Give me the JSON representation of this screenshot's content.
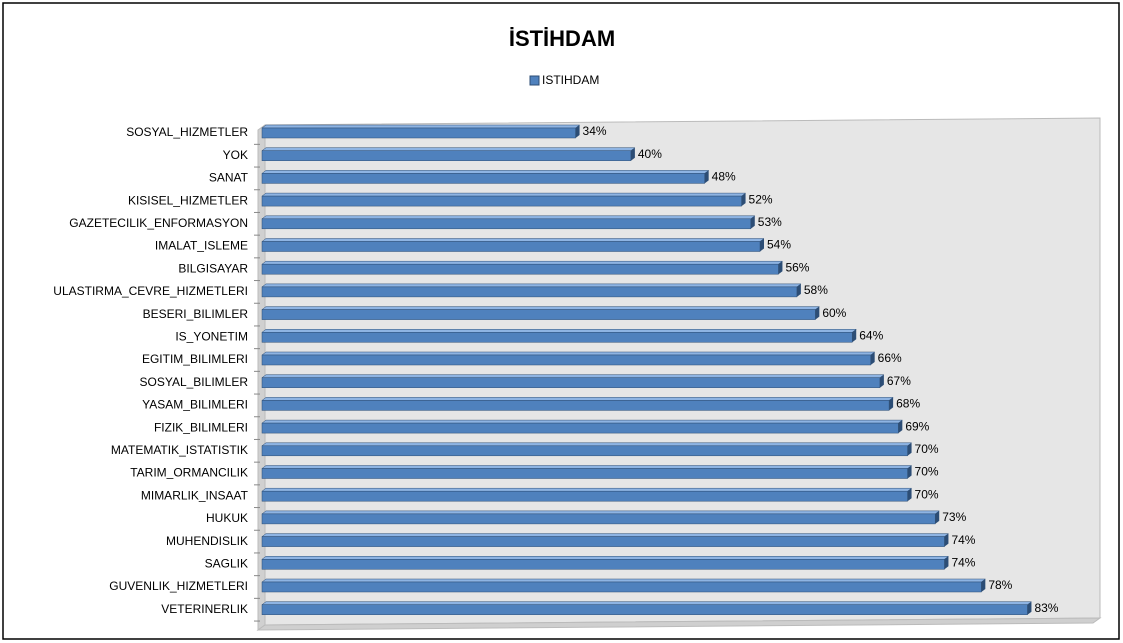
{
  "chart_data": {
    "type": "bar",
    "orientation": "horizontal",
    "title": "İSTİHDAM",
    "categories": [
      "SOSYAL_HIZMETLER",
      "YOK",
      "SANAT",
      "KISISEL_HIZMETLER",
      "GAZETECILIK_ENFORMASYON",
      "IMALAT_ISLEME",
      "BILGISAYAR",
      "ULASTIRMA_CEVRE_HIZMETLERI",
      "BESERI_BILIMLER",
      "IS_YONETIM",
      "EGITIM_BILIMLERI",
      "SOSYAL_BILIMLER",
      "YASAM_BILIMLERI",
      "FIZIK_BILIMLERI",
      "MATEMATIK_ISTATISTIK",
      "TARIM_ORMANCILIK",
      "MIMARLIK_INSAAT",
      "HUKUK",
      "MUHENDISLIK",
      "SAGLIK",
      "GUVENLIK_HIZMETLERI",
      "VETERINERLIK"
    ],
    "series": [
      {
        "name": "ISTIHDAM",
        "color": "#4f81bd",
        "values": [
          34,
          40,
          48,
          52,
          53,
          54,
          56,
          58,
          60,
          64,
          66,
          67,
          68,
          69,
          70,
          70,
          70,
          73,
          74,
          74,
          78,
          83
        ],
        "value_labels": [
          "34%",
          "40%",
          "48%",
          "52%",
          "53%",
          "54%",
          "56%",
          "58%",
          "60%",
          "64%",
          "66%",
          "67%",
          "68%",
          "69%",
          "70%",
          "70%",
          "70%",
          "73%",
          "74%",
          "74%",
          "78%",
          "83%"
        ]
      }
    ],
    "xlim": [
      0,
      90
    ],
    "legend": "top"
  }
}
